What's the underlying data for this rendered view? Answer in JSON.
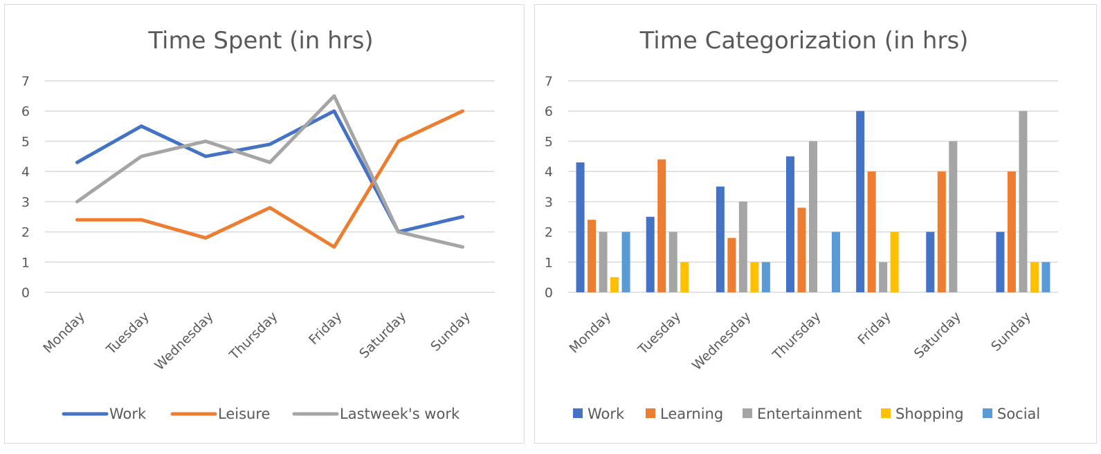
{
  "chart_data": [
    {
      "type": "line",
      "title": "Time Spent (in hrs)",
      "categories": [
        "Monday",
        "Tuesday",
        "Wednesday",
        "Thursday",
        "Friday",
        "Saturday",
        "Sunday"
      ],
      "ylim": [
        0,
        7
      ],
      "yticks": [
        0,
        1,
        2,
        3,
        4,
        5,
        6,
        7
      ],
      "grid": true,
      "legend_position": "bottom",
      "series": [
        {
          "name": "Work",
          "color": "#4472c4",
          "values": [
            4.3,
            5.5,
            4.5,
            4.9,
            6.0,
            2.0,
            2.5
          ]
        },
        {
          "name": "Leisure",
          "color": "#ed7d31",
          "values": [
            2.4,
            2.4,
            1.8,
            2.8,
            1.5,
            5.0,
            6.0
          ]
        },
        {
          "name": "Lastweek's work",
          "color": "#a5a5a5",
          "values": [
            3.0,
            4.5,
            5.0,
            4.3,
            6.5,
            2.0,
            1.5
          ]
        }
      ]
    },
    {
      "type": "bar",
      "title": "Time Categorization (in hrs)",
      "categories": [
        "Monday",
        "Tuesday",
        "Wednesday",
        "Thursday",
        "Friday",
        "Saturday",
        "Sunday"
      ],
      "ylim": [
        0,
        7
      ],
      "yticks": [
        0,
        1,
        2,
        3,
        4,
        5,
        6,
        7
      ],
      "grid": true,
      "legend_position": "bottom",
      "series": [
        {
          "name": "Work",
          "color": "#4472c4",
          "values": [
            4.3,
            2.5,
            3.5,
            4.5,
            6.0,
            2.0,
            2.0
          ]
        },
        {
          "name": "Learning",
          "color": "#ed7d31",
          "values": [
            2.4,
            4.4,
            1.8,
            2.8,
            4.0,
            4.0,
            4.0
          ]
        },
        {
          "name": "Entertainment",
          "color": "#a5a5a5",
          "values": [
            2.0,
            2.0,
            3.0,
            5.0,
            1.0,
            5.0,
            6.0
          ]
        },
        {
          "name": "Shopping",
          "color": "#ffc000",
          "values": [
            0.5,
            1.0,
            1.0,
            0.0,
            2.0,
            0.0,
            1.0
          ]
        },
        {
          "name": "Social",
          "color": "#5b9bd5",
          "values": [
            2.0,
            0.0,
            1.0,
            2.0,
            0.0,
            0.0,
            1.0
          ]
        }
      ]
    }
  ]
}
